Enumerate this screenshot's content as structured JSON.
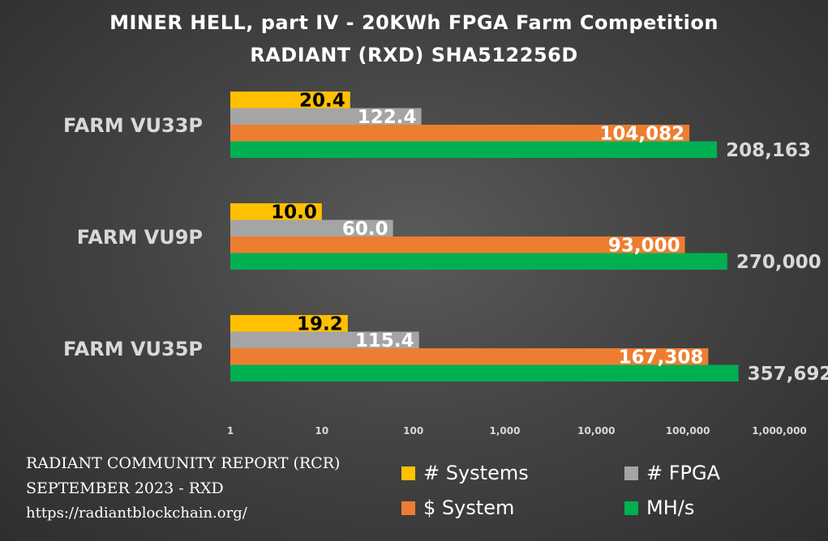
{
  "title": "MINER HELL, part IV - 20KWh FPGA Farm Competition",
  "subtitle": "RADIANT (RXD) SHA512256D",
  "footer": {
    "line1": "RADIANT COMMUNITY REPORT (RCR)",
    "line2": "SEPTEMBER 2023 - RXD",
    "line3": "https://radiantblockchain.org/"
  },
  "colors": {
    "systems": "#FFC000",
    "fpga": "#A5A5A5",
    "system_cost": "#ED7D31",
    "mhs": "#00B050"
  },
  "chart_data": {
    "type": "bar",
    "orientation": "horizontal",
    "x_scale": "log",
    "xlim": [
      1,
      1000000
    ],
    "x_tick_labels": [
      "1",
      "10",
      "100",
      "1,000",
      "10,000",
      "100,000",
      "1,000,000"
    ],
    "grid": false,
    "legend_position": "bottom-right",
    "categories": [
      "FARM VU33P",
      "FARM VU9P",
      "FARM VU35P"
    ],
    "series": [
      {
        "name": "# Systems",
        "color": "#FFC000",
        "values": [
          20.4,
          10.0,
          19.2
        ],
        "labels": [
          "20.4",
          "10.0",
          "19.2"
        ]
      },
      {
        "name": "# FPGA",
        "color": "#A5A5A5",
        "values": [
          122.4,
          60.0,
          115.4
        ],
        "labels": [
          "122.4",
          "60.0",
          "115.4"
        ]
      },
      {
        "name": "$ System",
        "color": "#ED7D31",
        "values": [
          104082,
          93000,
          167308
        ],
        "labels": [
          "104,082",
          "93,000",
          "167,308"
        ]
      },
      {
        "name": "MH/s",
        "color": "#00B050",
        "values": [
          208163,
          270000,
          357692
        ],
        "labels": [
          "208,163",
          "270,000",
          "357,692"
        ]
      }
    ]
  }
}
